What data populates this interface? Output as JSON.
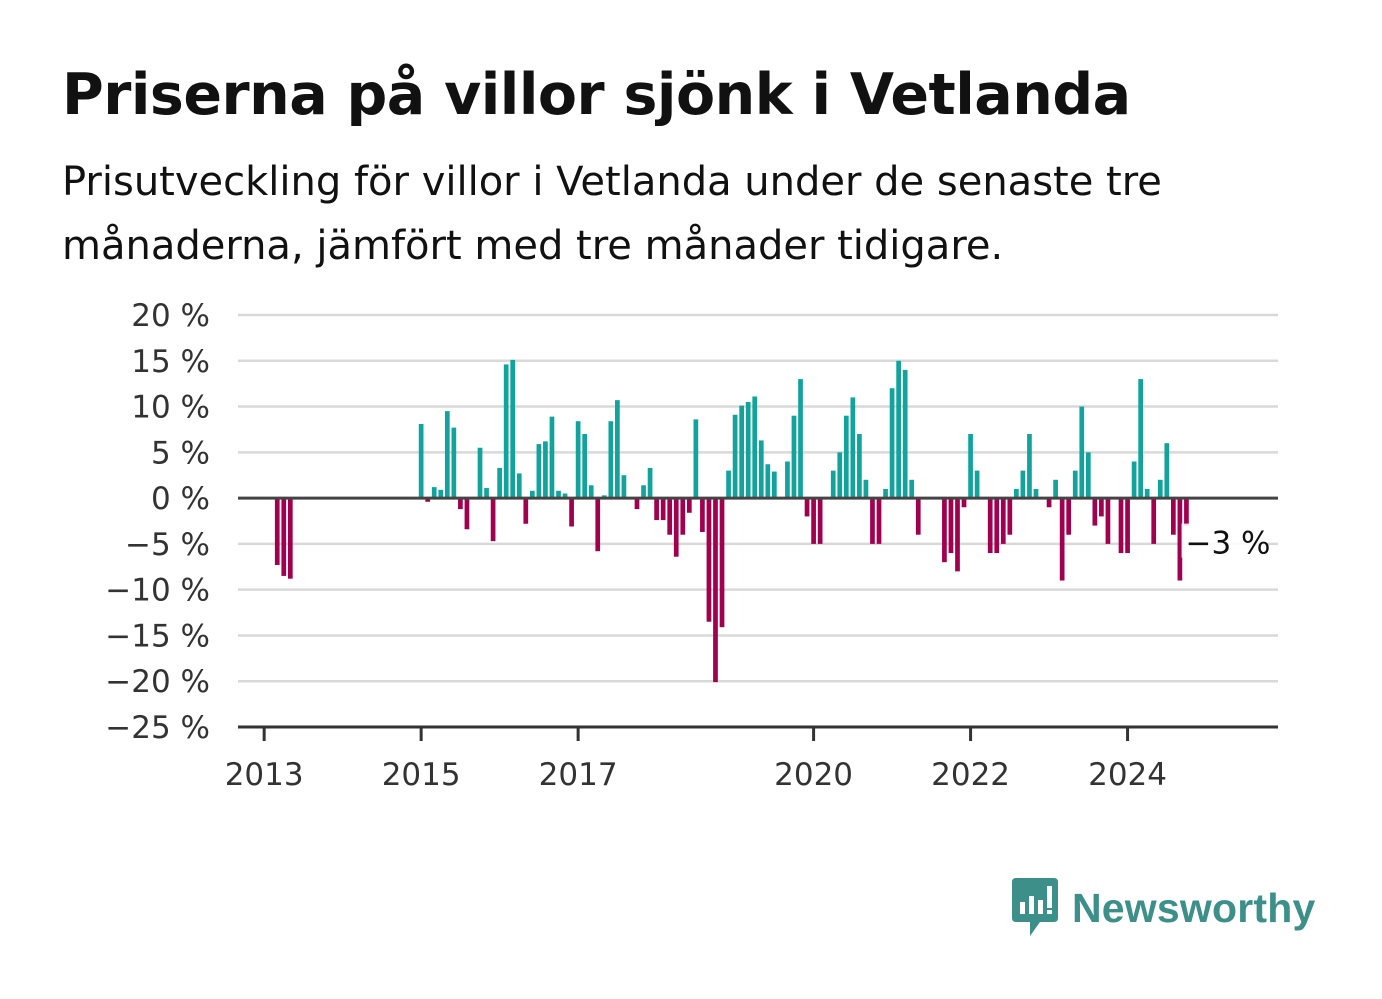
{
  "title": "Priserna på villor sjönk i Vetlanda",
  "subtitle": "Prisutveckling för villor i Vetlanda under de senaste tre månaderna, jämfört med tre månader tidigare.",
  "brand": {
    "name": "Newsworthy",
    "color": "#3d8f8a",
    "icon": "newsworthy-logo-icon"
  },
  "colors": {
    "positive": "#13a39d",
    "negative": "#a1004e",
    "grid": "#d9d9d9",
    "zero_line": "#444444"
  },
  "chart_data": {
    "type": "bar",
    "title": "Priserna på villor sjönk i Vetlanda",
    "xlabel": "",
    "ylabel": "",
    "ylim": [
      -25,
      20
    ],
    "yticks": [
      20,
      15,
      10,
      5,
      0,
      -5,
      -10,
      -15,
      -20,
      -25
    ],
    "ytick_labels": [
      "20 %",
      "15 %",
      "10 %",
      "5 %",
      "0 %",
      "−5 %",
      "−10 %",
      "−15 %",
      "−20 %",
      "−25 %"
    ],
    "xlim": [
      "2012-09",
      "2025-12"
    ],
    "xticks": [
      {
        "label": "2013",
        "date": "2013-01"
      },
      {
        "label": "2015",
        "date": "2015-01"
      },
      {
        "label": "2017",
        "date": "2017-01"
      },
      {
        "label": "2020",
        "date": "2020-01"
      },
      {
        "label": "2022",
        "date": "2022-01"
      },
      {
        "label": "2024",
        "date": "2024-01"
      }
    ],
    "grid": true,
    "annotation": {
      "text": "−3 %",
      "date": "2024-12"
    },
    "series": [
      {
        "points": [
          [
            "2013-03",
            -7.3
          ],
          [
            "2013-04",
            -8.5
          ],
          [
            "2013-05",
            -8.8
          ],
          [
            "2015-01",
            8.1
          ],
          [
            "2015-02",
            -0.4
          ],
          [
            "2015-03",
            1.2
          ],
          [
            "2015-04",
            0.9
          ],
          [
            "2015-05",
            9.5
          ],
          [
            "2015-06",
            7.7
          ],
          [
            "2015-07",
            -1.2
          ],
          [
            "2015-08",
            -3.4
          ],
          [
            "2015-10",
            5.5
          ],
          [
            "2015-11",
            1.1
          ],
          [
            "2015-12",
            -4.7
          ],
          [
            "2016-01",
            3.3
          ],
          [
            "2016-02",
            14.6
          ],
          [
            "2016-03",
            15.1
          ],
          [
            "2016-04",
            2.7
          ],
          [
            "2016-05",
            -2.8
          ],
          [
            "2016-06",
            0.8
          ],
          [
            "2016-07",
            5.9
          ],
          [
            "2016-08",
            6.2
          ],
          [
            "2016-09",
            8.9
          ],
          [
            "2016-10",
            0.8
          ],
          [
            "2016-11",
            0.5
          ],
          [
            "2016-12",
            -3.1
          ],
          [
            "2017-01",
            8.4
          ],
          [
            "2017-02",
            7.0
          ],
          [
            "2017-03",
            1.4
          ],
          [
            "2017-04",
            -5.8
          ],
          [
            "2017-05",
            0.3
          ],
          [
            "2017-06",
            8.4
          ],
          [
            "2017-07",
            10.7
          ],
          [
            "2017-08",
            2.5
          ],
          [
            "2017-10",
            -1.2
          ],
          [
            "2017-11",
            1.4
          ],
          [
            "2017-12",
            3.3
          ],
          [
            "2018-01",
            -2.4
          ],
          [
            "2018-02",
            -2.4
          ],
          [
            "2018-03",
            -4.0
          ],
          [
            "2018-04",
            -6.4
          ],
          [
            "2018-05",
            -4.0
          ],
          [
            "2018-06",
            -1.6
          ],
          [
            "2018-07",
            8.6
          ],
          [
            "2018-08",
            -3.7
          ],
          [
            "2018-09",
            -13.5
          ],
          [
            "2018-10",
            -20.1
          ],
          [
            "2018-11",
            -14.1
          ],
          [
            "2018-12",
            3.0
          ],
          [
            "2019-01",
            9.1
          ],
          [
            "2019-02",
            10.1
          ],
          [
            "2019-03",
            10.5
          ],
          [
            "2019-04",
            11.1
          ],
          [
            "2019-05",
            6.3
          ],
          [
            "2019-06",
            3.7
          ],
          [
            "2019-07",
            2.9
          ],
          [
            "2019-09",
            4.0
          ],
          [
            "2019-10",
            9.0
          ],
          [
            "2019-11",
            13.0
          ],
          [
            "2019-12",
            -2.0
          ],
          [
            "2020-01",
            -5.0
          ],
          [
            "2020-02",
            -5.0
          ],
          [
            "2020-04",
            3.0
          ],
          [
            "2020-05",
            5.0
          ],
          [
            "2020-06",
            9.0
          ],
          [
            "2020-07",
            11.0
          ],
          [
            "2020-08",
            7.0
          ],
          [
            "2020-09",
            2.0
          ],
          [
            "2020-10",
            -5.0
          ],
          [
            "2020-11",
            -5.0
          ],
          [
            "2020-12",
            1.0
          ],
          [
            "2021-01",
            12.0
          ],
          [
            "2021-02",
            15.0
          ],
          [
            "2021-03",
            14.0
          ],
          [
            "2021-04",
            2.0
          ],
          [
            "2021-05",
            -4.0
          ],
          [
            "2021-09",
            -7.0
          ],
          [
            "2021-10",
            -6.0
          ],
          [
            "2021-11",
            -8.0
          ],
          [
            "2021-12",
            -1.0
          ],
          [
            "2022-01",
            7.0
          ],
          [
            "2022-02",
            3.0
          ],
          [
            "2022-04",
            -6.0
          ],
          [
            "2022-05",
            -6.0
          ],
          [
            "2022-06",
            -5.0
          ],
          [
            "2022-07",
            -4.0
          ],
          [
            "2022-08",
            1.0
          ],
          [
            "2022-09",
            3.0
          ],
          [
            "2022-10",
            7.0
          ],
          [
            "2022-11",
            1.0
          ],
          [
            "2023-01",
            -1.0
          ],
          [
            "2023-02",
            2.0
          ],
          [
            "2023-03",
            -9.0
          ],
          [
            "2023-04",
            -4.0
          ],
          [
            "2023-05",
            3.0
          ],
          [
            "2023-06",
            10.0
          ],
          [
            "2023-07",
            5.0
          ],
          [
            "2023-08",
            -3.0
          ],
          [
            "2023-09",
            -2.0
          ],
          [
            "2023-10",
            -5.0
          ],
          [
            "2023-12",
            -6.0
          ],
          [
            "2024-01",
            -6.0
          ],
          [
            "2024-02",
            4.0
          ],
          [
            "2024-03",
            13.0
          ],
          [
            "2024-04",
            1.0
          ],
          [
            "2024-05",
            -5.0
          ],
          [
            "2024-06",
            2.0
          ],
          [
            "2024-07",
            6.0
          ],
          [
            "2024-08",
            -4.0
          ],
          [
            "2024-09",
            -9.0
          ],
          [
            "2024-10",
            -3.0
          ]
        ]
      }
    ]
  }
}
